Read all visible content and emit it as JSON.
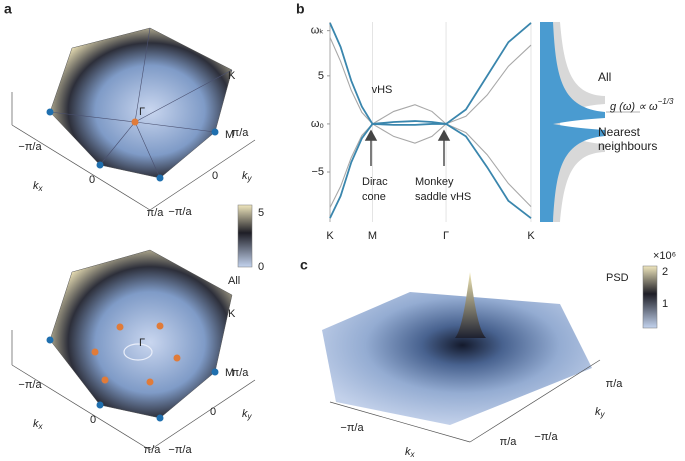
{
  "panel_a": {
    "label": "a",
    "top": {
      "k": "K",
      "m": "M",
      "gamma": "Γ",
      "kx_ticks": [
        "−π/a",
        "0",
        "π/a"
      ],
      "ky_ticks": [
        "−π/a",
        "0",
        "π/a"
      ],
      "kx": {
        "base": "k",
        "sub": "x"
      },
      "ky": {
        "base": "k",
        "sub": "y"
      }
    },
    "colorbar": {
      "ticks": [
        "5",
        "0"
      ],
      "caption": "All"
    },
    "bottom": {
      "k": "K",
      "m": "M",
      "gamma": "Γ",
      "kx_ticks": [
        "−π/a",
        "0",
        "π/a"
      ],
      "ky_ticks": [
        "−π/a",
        "0",
        "π/a"
      ],
      "kx": {
        "base": "k",
        "sub": "x"
      },
      "ky": {
        "base": "k",
        "sub": "y"
      }
    }
  },
  "chart_data": {
    "type": "line",
    "label": "b",
    "x": [
      0,
      0.25,
      0.5,
      0.75,
      1,
      1.5,
      2,
      2.4,
      2.732,
      3.2,
      3.7,
      4.2,
      4.732
    ],
    "xlim": [
      0,
      4.732
    ],
    "xticks": [
      {
        "value": 0,
        "label": "K"
      },
      {
        "value": 1,
        "label": "M"
      },
      {
        "value": 2.732,
        "label": "Γ"
      },
      {
        "value": 4.732,
        "label": "K"
      }
    ],
    "ylim": [
      -10.2,
      10.6
    ],
    "yticks": [
      {
        "value": 9.7,
        "label": "ωₖ"
      },
      5,
      {
        "value": 0,
        "label": "ω₀"
      },
      {
        "value": -5,
        "label": "−5"
      }
    ],
    "series": [
      {
        "name": "All",
        "color": "#a8a8a8",
        "bands": [
          [
            9,
            6.5,
            3.5,
            1.2,
            0,
            1.3,
            2,
            1.3,
            0,
            0.8,
            3,
            6,
            8.2
          ],
          [
            -8.7,
            -6.5,
            -3.5,
            -1.2,
            0,
            -1.3,
            -2,
            -1.3,
            0,
            -0.9,
            -3.2,
            -6.2,
            -8.6
          ]
        ]
      },
      {
        "name": "Nearest neighbours",
        "color": "#3a86ad",
        "bands": [
          [
            10.5,
            8,
            4.5,
            1.8,
            0,
            0.2,
            0.3,
            0.2,
            0,
            1.5,
            5,
            8.5,
            10.5
          ],
          [
            -9.8,
            -7.5,
            -4,
            -1.5,
            0,
            -0.1,
            -0.1,
            0,
            0,
            -1.3,
            -4.5,
            -8,
            -9.8
          ]
        ]
      }
    ],
    "annotations": {
      "vhs": "vHS",
      "dirac": [
        "Dirac",
        "cone"
      ],
      "monkey": [
        "Monkey",
        "saddle vHS"
      ]
    },
    "dos_formula": {
      "base": "g (ω) ∝ ω",
      "exponent": "−1/3"
    }
  },
  "panel_c": {
    "label": "c",
    "colorbar": {
      "title": "PSD",
      "scale": "×10⁶",
      "ticks": [
        "2",
        "1"
      ]
    },
    "kx_ticks": [
      "−π/a",
      "π/a"
    ],
    "ky_ticks": [
      "−π/a",
      "π/a"
    ],
    "kx": {
      "base": "k",
      "sub": "x"
    },
    "ky": {
      "base": "k",
      "sub": "y"
    }
  }
}
